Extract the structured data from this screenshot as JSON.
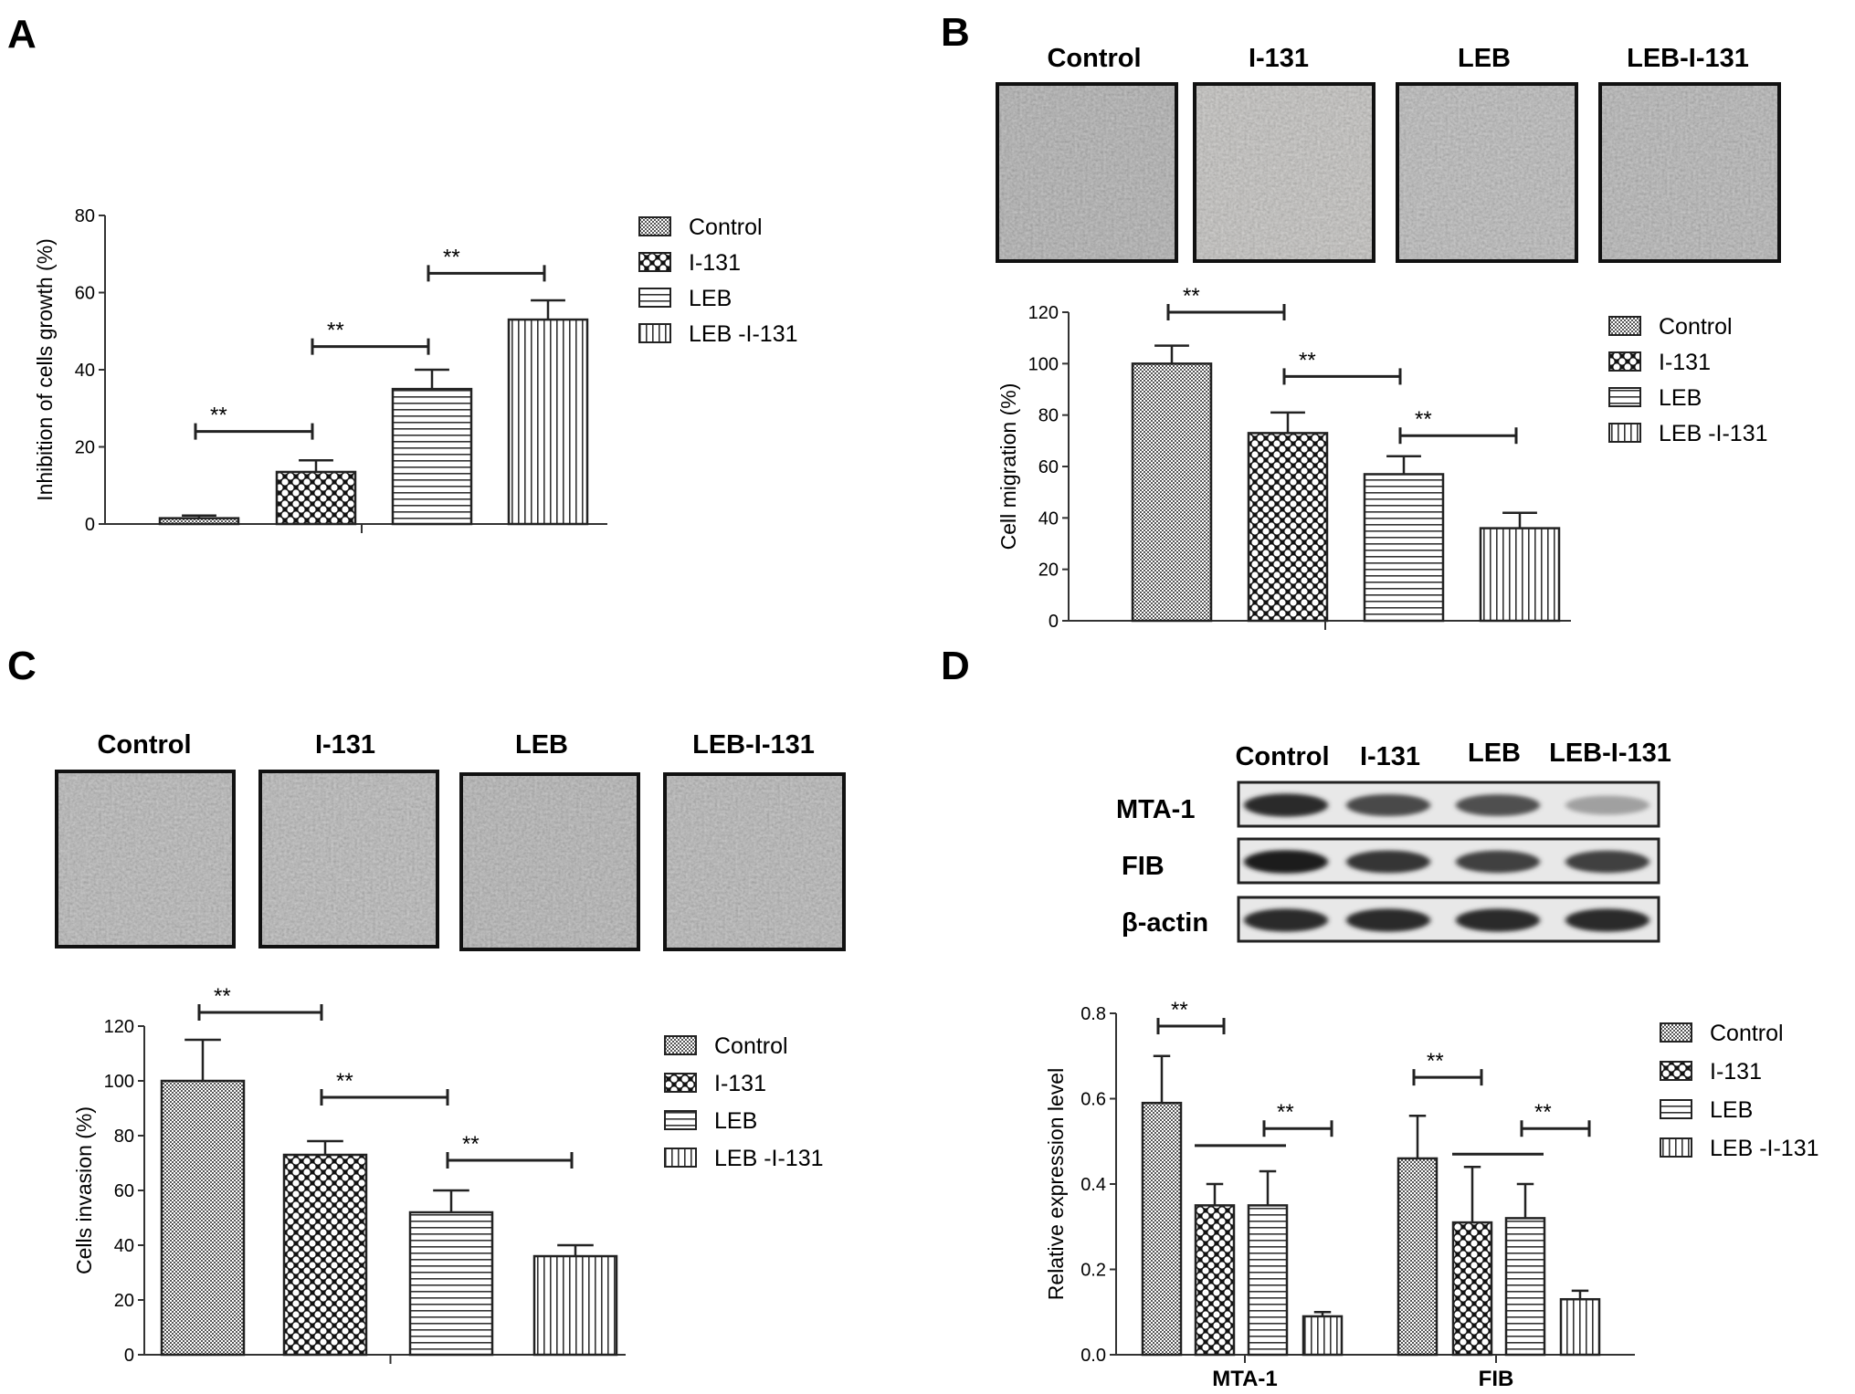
{
  "panels": {
    "A": {
      "letter": "A"
    },
    "B": {
      "letter": "B",
      "images": [
        "Control",
        "I-131",
        "LEB",
        "LEB-I-131"
      ]
    },
    "C": {
      "letter": "C",
      "images": [
        "Control",
        "I-131",
        "LEB",
        "LEB-I-131"
      ]
    },
    "D": {
      "letter": "D",
      "blot_lanes": [
        "Control",
        "I-131",
        "LEB",
        "LEB-I-131"
      ],
      "blot_rows": [
        "MTA-1",
        "FIB",
        "β-actin"
      ],
      "blot_intensity": [
        [
          0.9,
          0.75,
          0.72,
          0.35
        ],
        [
          0.95,
          0.85,
          0.8,
          0.8
        ],
        [
          0.9,
          0.9,
          0.9,
          0.9
        ]
      ]
    }
  },
  "legend_labels": [
    "Control",
    "I-131",
    "LEB",
    "LEB -I-131"
  ],
  "legend_labels_A": [
    "Control",
    "I-131",
    " LEB",
    " LEB -I-131"
  ],
  "chart_data": [
    {
      "panel": "A",
      "type": "bar",
      "categories": [
        "Control",
        "I-131",
        "LEB",
        "LEB -I-131"
      ],
      "values": [
        1.5,
        13.5,
        35,
        53
      ],
      "errors": [
        0.7,
        3,
        5,
        5
      ],
      "ylabel": "Inhibition of cells growth (%)",
      "ylim": [
        0,
        80
      ],
      "yticks": [
        0,
        20,
        40,
        60,
        80
      ],
      "significance": [
        {
          "from": 0,
          "to": 1,
          "label": "**",
          "y": 24
        },
        {
          "from": 1,
          "to": 2,
          "label": "**",
          "y": 46
        },
        {
          "from": 2,
          "to": 3,
          "label": "**",
          "y": 65
        }
      ]
    },
    {
      "panel": "B",
      "type": "bar",
      "categories": [
        "Control",
        "I-131",
        "LEB",
        "LEB -I-131"
      ],
      "values": [
        100,
        73,
        57,
        36
      ],
      "errors": [
        7,
        8,
        7,
        6
      ],
      "ylabel": "Cell migration (%)",
      "ylim": [
        0,
        120
      ],
      "yticks": [
        0,
        20,
        40,
        60,
        80,
        100,
        120
      ],
      "significance": [
        {
          "from": 0,
          "to": 1,
          "label": "**",
          "y": 120
        },
        {
          "from": 1,
          "to": 2,
          "label": "**",
          "y": 95
        },
        {
          "from": 2,
          "to": 3,
          "label": "**",
          "y": 72
        }
      ]
    },
    {
      "panel": "C",
      "type": "bar",
      "categories": [
        "Control",
        "I-131",
        "LEB",
        "LEB -I-131"
      ],
      "values": [
        100,
        73,
        52,
        36
      ],
      "errors": [
        15,
        5,
        8,
        4
      ],
      "ylabel": "Cells invasion (%)",
      "ylim": [
        0,
        120
      ],
      "yticks": [
        0,
        20,
        40,
        60,
        80,
        100,
        120
      ],
      "significance": [
        {
          "from": 0,
          "to": 1,
          "label": "**",
          "y": 125
        },
        {
          "from": 1,
          "to": 2,
          "label": "**",
          "y": 94
        },
        {
          "from": 2,
          "to": 3,
          "label": "**",
          "y": 71
        }
      ]
    },
    {
      "panel": "D",
      "type": "bar",
      "categories": [
        "MTA-1",
        "FIB"
      ],
      "series": [
        {
          "name": "Control",
          "values": [
            0.59,
            0.46
          ],
          "errors": [
            0.11,
            0.1
          ]
        },
        {
          "name": "I-131",
          "values": [
            0.35,
            0.31
          ],
          "errors": [
            0.05,
            0.13
          ]
        },
        {
          "name": "LEB",
          "values": [
            0.35,
            0.32
          ],
          "errors": [
            0.08,
            0.08
          ]
        },
        {
          "name": "LEB -I-131",
          "values": [
            0.09,
            0.13
          ],
          "errors": [
            0.01,
            0.02
          ]
        }
      ],
      "ylabel": "Relative expression level",
      "ylim": [
        0,
        0.8
      ],
      "yticks": [
        "0.0",
        "0.2",
        "0.4",
        "0.6",
        "0.8"
      ],
      "significance": [
        {
          "group": 0,
          "from": 0,
          "to": 1,
          "label": "**",
          "y": 0.77
        },
        {
          "group": 0,
          "from": 2,
          "to": 3,
          "label": "**",
          "y": 0.53
        },
        {
          "group": 1,
          "from": 0,
          "to": 1,
          "label": "**",
          "y": 0.65
        },
        {
          "group": 1,
          "from": 2,
          "to": 3,
          "label": "**",
          "y": 0.53
        }
      ]
    }
  ]
}
